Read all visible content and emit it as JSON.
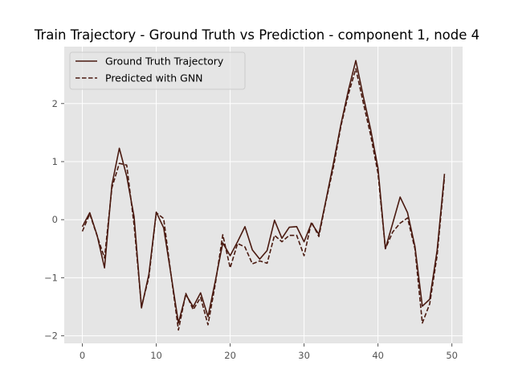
{
  "chart_data": {
    "type": "line",
    "title": "Train Trajectory - Ground Truth vs Prediction - component 1, node 4",
    "xlabel": "",
    "ylabel": "",
    "xlim": [
      -2.45,
      51.45
    ],
    "ylim": [
      -2.13,
      2.98
    ],
    "xticks": [
      0,
      10,
      20,
      30,
      40,
      50
    ],
    "yticks": [
      -2,
      -1,
      0,
      1,
      2
    ],
    "grid": true,
    "legend_position": "upper-left",
    "background": "#e5e5e5",
    "x": [
      0,
      1,
      2,
      3,
      4,
      5,
      6,
      7,
      8,
      9,
      10,
      11,
      12,
      13,
      14,
      15,
      16,
      17,
      18,
      19,
      20,
      21,
      22,
      23,
      24,
      25,
      26,
      27,
      28,
      29,
      30,
      31,
      32,
      33,
      34,
      35,
      36,
      37,
      38,
      39,
      40,
      41,
      42,
      43,
      44,
      45,
      46,
      47,
      48,
      49
    ],
    "series": [
      {
        "name": "Ground Truth Trajectory",
        "style": "solid",
        "color": "#4a1a10",
        "values": [
          -0.12,
          0.12,
          -0.27,
          -0.83,
          0.6,
          1.23,
          0.75,
          0.05,
          -1.52,
          -0.94,
          0.13,
          -0.14,
          -0.95,
          -1.78,
          -1.29,
          -1.5,
          -1.26,
          -1.67,
          -1.05,
          -0.4,
          -0.62,
          -0.38,
          -0.12,
          -0.52,
          -0.68,
          -0.53,
          -0.01,
          -0.32,
          -0.13,
          -0.12,
          -0.38,
          -0.06,
          -0.25,
          0.36,
          0.99,
          1.65,
          2.23,
          2.74,
          2.13,
          1.56,
          0.89,
          -0.5,
          -0.06,
          0.39,
          0.12,
          -0.46,
          -1.49,
          -1.37,
          -0.53,
          0.79
        ]
      },
      {
        "name": "Predicted with GNN",
        "style": "dashed",
        "color": "#4a1a10",
        "values": [
          -0.2,
          0.1,
          -0.28,
          -0.66,
          0.55,
          0.97,
          0.94,
          -0.09,
          -1.5,
          -0.99,
          0.12,
          0.02,
          -0.95,
          -1.9,
          -1.27,
          -1.55,
          -1.34,
          -1.81,
          -1.1,
          -0.26,
          -0.83,
          -0.41,
          -0.47,
          -0.76,
          -0.71,
          -0.75,
          -0.27,
          -0.38,
          -0.27,
          -0.27,
          -0.62,
          -0.04,
          -0.29,
          0.34,
          0.92,
          1.62,
          2.16,
          2.6,
          2.02,
          1.46,
          0.8,
          -0.5,
          -0.21,
          -0.06,
          0.03,
          -0.5,
          -1.78,
          -1.45,
          -0.62,
          0.73
        ]
      }
    ]
  }
}
